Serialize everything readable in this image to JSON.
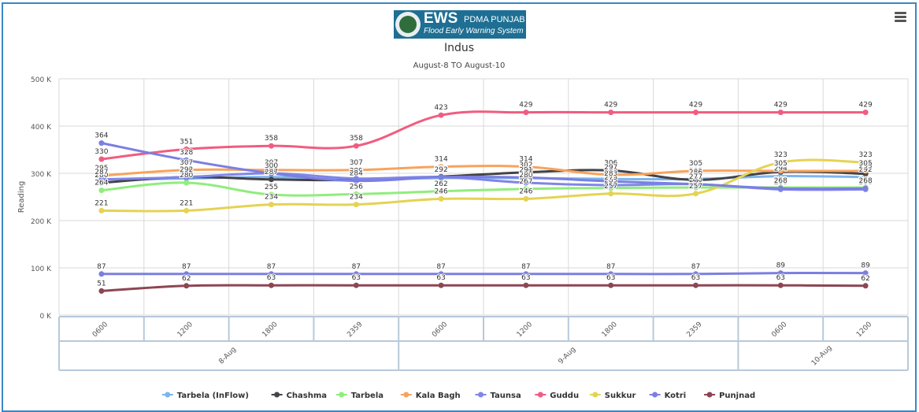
{
  "logo": {
    "brand": "EWS",
    "org": "PDMA PUNJAB",
    "tagline": "Flood Early Warning System"
  },
  "chart_data": {
    "type": "line",
    "title": "Indus",
    "subtitle": "August-8 TO August-10",
    "ylabel": "Reading",
    "ylim": [
      0,
      500000
    ],
    "y_ticks": [
      0,
      100000,
      200000,
      300000,
      400000,
      500000
    ],
    "y_tick_labels": [
      "0 K",
      "100 K",
      "200 K",
      "300 K",
      "400 K",
      "500 K"
    ],
    "categories": [
      "0600",
      "1200",
      "1800",
      "2359",
      "0600",
      "1200",
      "1800",
      "2359",
      "0600",
      "1200"
    ],
    "date_groups": [
      {
        "label": "8-Aug",
        "count": 4
      },
      {
        "label": "9-Aug",
        "count": 4
      },
      {
        "label": "10-Aug",
        "count": 2
      }
    ],
    "grid": true,
    "legend": "bottom-center",
    "series": [
      {
        "name": "Tarbela (InFlow)",
        "color": "#7cb5ec",
        "values": [
          287,
          289,
          292,
          287,
          290,
          290,
          288,
          288,
          294,
          292
        ]
      },
      {
        "name": "Chashma",
        "color": "#434348",
        "values": [
          280,
          292,
          287,
          286,
          293,
          302,
          306,
          286,
          303,
          299
        ]
      },
      {
        "name": "Tarbela",
        "color": "#90ed7d",
        "values": [
          264,
          280,
          255,
          256,
          262,
          267,
          269,
          270,
          270,
          270
        ]
      },
      {
        "name": "Kala Bagh",
        "color": "#f7a35c",
        "values": [
          295,
          307,
          307,
          307,
          314,
          314,
          297,
          305,
          305,
          305
        ]
      },
      {
        "name": "Taunsa",
        "color": "#8085e9",
        "values": [
          287,
          292,
          300,
          289,
          292,
          280,
          275,
          277,
          266,
          266
        ]
      },
      {
        "name": "Guddu",
        "color": "#f15c80",
        "values": [
          330,
          351,
          358,
          358,
          423,
          429,
          429,
          429,
          429,
          429
        ]
      },
      {
        "name": "Sukkur",
        "color": "#e4d354",
        "values": [
          221,
          221,
          234,
          234,
          246,
          246,
          257,
          257,
          323,
          323
        ]
      },
      {
        "name": "Kotri",
        "color": "#7b7fe0",
        "values": [
          364,
          328,
          300,
          284,
          292,
          291,
          283,
          277,
          268,
          268
        ]
      },
      {
        "name": "Punjnad",
        "color": "#8d4653",
        "values": [
          51,
          62,
          63,
          63,
          63,
          63,
          63,
          63,
          63,
          62
        ]
      }
    ],
    "extra_series": [
      {
        "color": "#7b7fe0",
        "values": [
          87,
          87,
          87,
          87,
          87,
          87,
          87,
          87,
          89,
          89
        ]
      }
    ]
  }
}
